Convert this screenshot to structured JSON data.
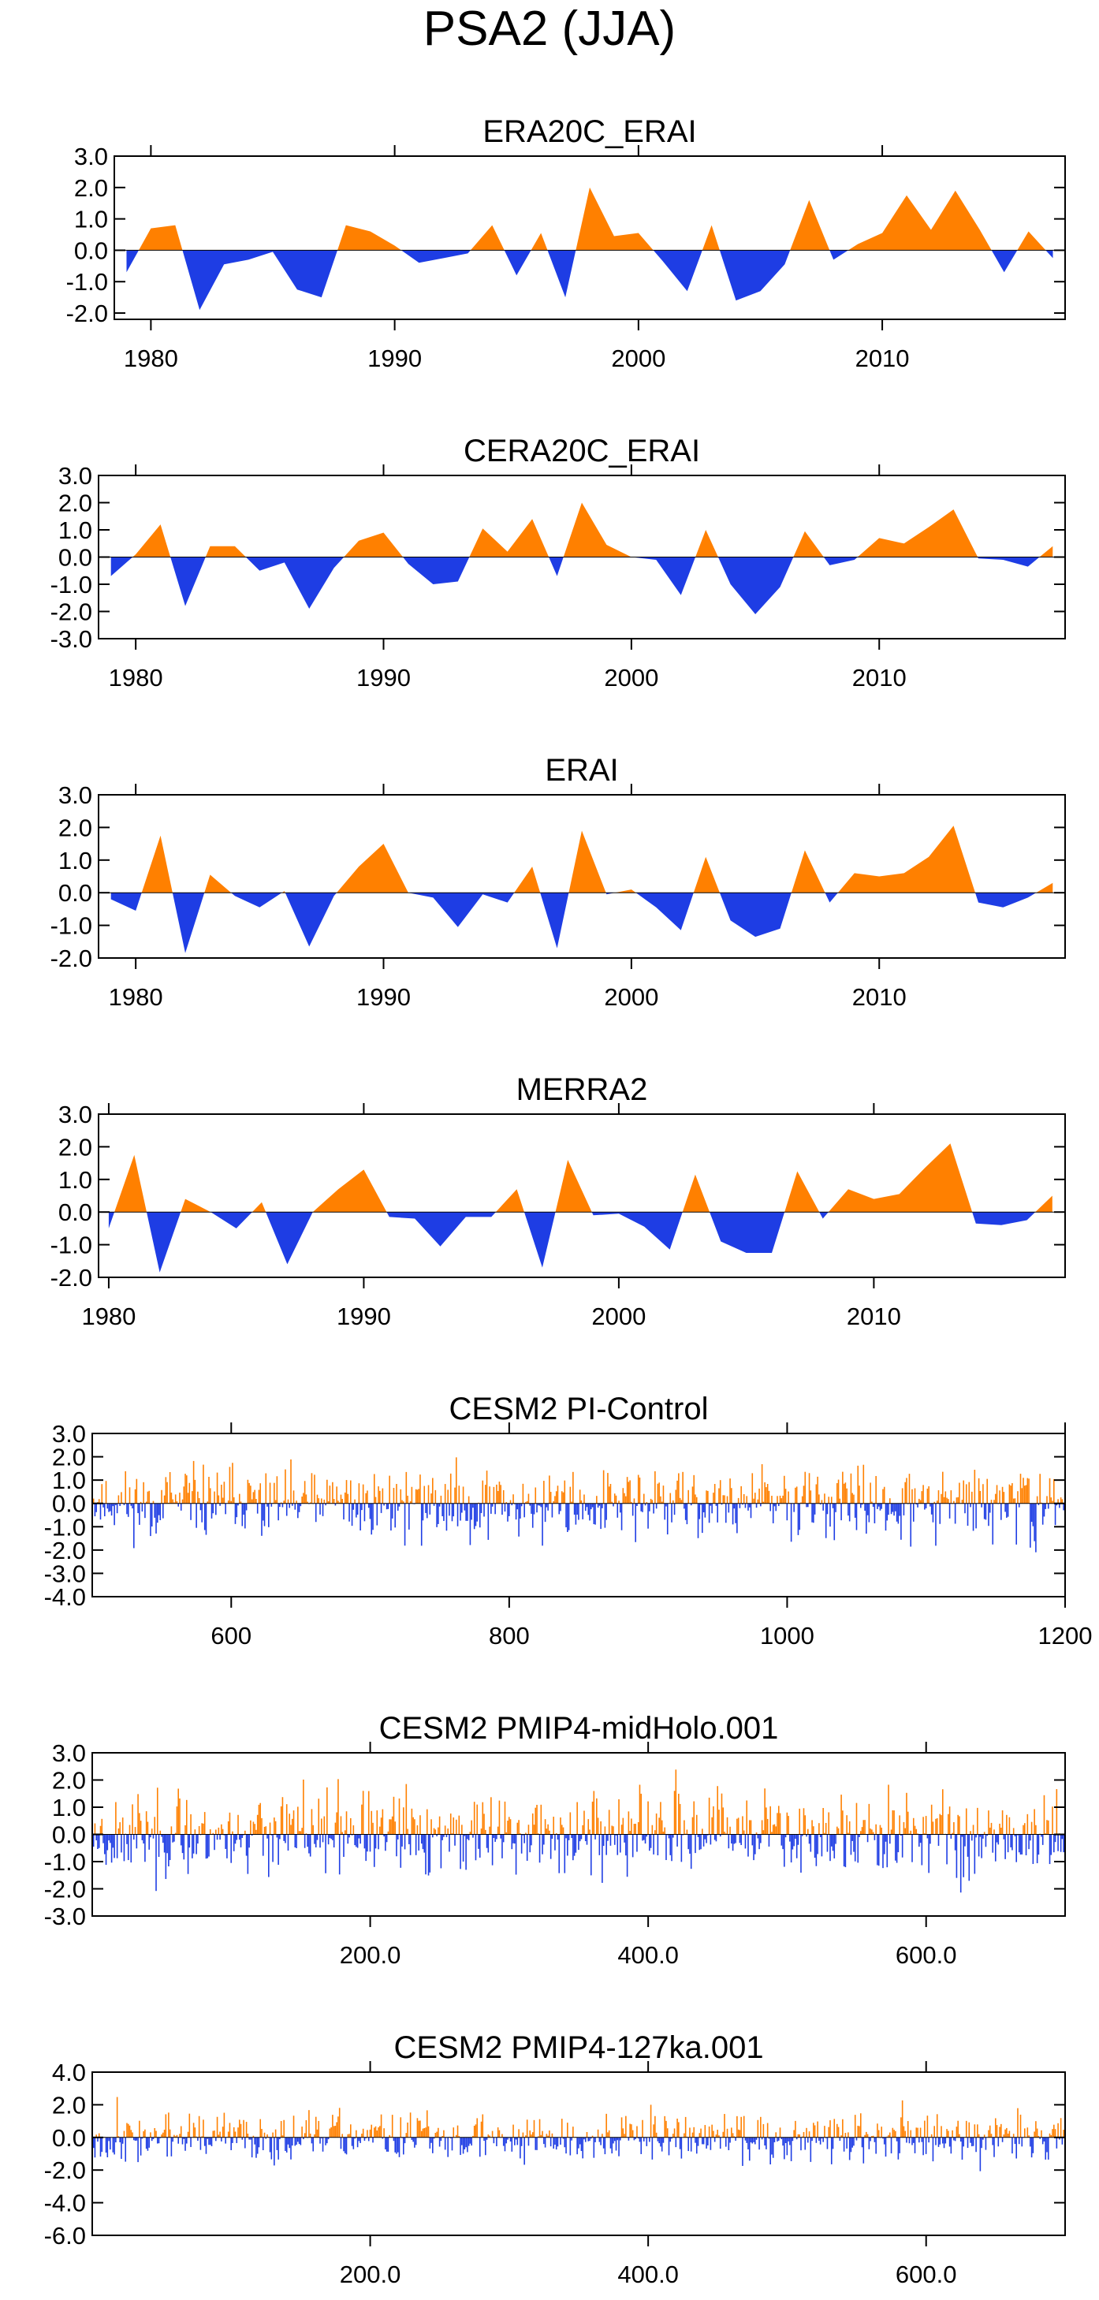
{
  "page": {
    "title": "PSA2 (JJA)"
  },
  "colors": {
    "positive": "#ff8000",
    "negative": "#1e3de4",
    "axis": "#000000"
  },
  "chart_data": [
    {
      "type": "area",
      "title": "ERA20C_ERAI",
      "xlim": [
        1978.5,
        2017.5
      ],
      "ylim": [
        -2.2,
        3.0
      ],
      "yticks": [
        3.0,
        2.0,
        1.0,
        0.0,
        -1.0,
        -2.0
      ],
      "xticks": [
        1980,
        1990,
        2000,
        2010
      ],
      "ytick_labels": [
        "3.0",
        "2.0",
        "1.0",
        "0.0",
        "-1.0",
        "-2.0"
      ],
      "xtick_labels": [
        "1980",
        "1990",
        "2000",
        "2010"
      ],
      "x_start": 1979,
      "values": [
        -0.7,
        0.7,
        0.8,
        -1.9,
        -0.45,
        -0.3,
        -0.05,
        -1.25,
        -1.5,
        0.8,
        0.6,
        0.15,
        -0.4,
        -0.25,
        -0.1,
        0.8,
        -0.8,
        0.55,
        -1.5,
        2.0,
        0.45,
        0.55,
        -0.35,
        -1.3,
        0.8,
        -1.6,
        -1.3,
        -0.45,
        1.6,
        -0.3,
        0.2,
        0.55,
        1.75,
        0.65,
        1.9,
        0.65,
        -0.7,
        0.6,
        -0.25
      ]
    },
    {
      "type": "area",
      "title": "CERA20C_ERAI",
      "xlim": [
        1978.5,
        2017.5
      ],
      "ylim": [
        -3.0,
        3.0
      ],
      "yticks": [
        3.0,
        2.0,
        1.0,
        0.0,
        -1.0,
        -2.0,
        -3.0
      ],
      "xticks": [
        1980,
        1990,
        2000,
        2010
      ],
      "ytick_labels": [
        "3.0",
        "2.0",
        "1.0",
        "0.0",
        "-1.0",
        "-2.0",
        "-3.0"
      ],
      "xtick_labels": [
        "1980",
        "1990",
        "2000",
        "2010"
      ],
      "x_start": 1979,
      "values": [
        -0.7,
        0.1,
        1.2,
        -1.8,
        0.4,
        0.4,
        -0.5,
        -0.2,
        -1.9,
        -0.4,
        0.6,
        0.9,
        -0.25,
        -1.0,
        -0.9,
        1.05,
        0.2,
        1.4,
        -0.7,
        2.0,
        0.45,
        0.0,
        -0.1,
        -1.4,
        1.0,
        -1.0,
        -2.1,
        -1.1,
        0.95,
        -0.3,
        -0.1,
        0.7,
        0.5,
        1.1,
        1.75,
        -0.05,
        -0.1,
        -0.35,
        0.4
      ]
    },
    {
      "type": "area",
      "title": "ERAI",
      "xlim": [
        1978.5,
        2017.5
      ],
      "ylim": [
        -2.0,
        3.0
      ],
      "yticks": [
        3.0,
        2.0,
        1.0,
        0.0,
        -1.0,
        -2.0
      ],
      "xticks": [
        1980,
        1990,
        2000,
        2010
      ],
      "ytick_labels": [
        "3.0",
        "2.0",
        "1.0",
        "0.0",
        "-1.0",
        "-2.0"
      ],
      "xtick_labels": [
        "1980",
        "1990",
        "2000",
        "2010"
      ],
      "x_start": 1979,
      "values": [
        -0.2,
        -0.55,
        1.75,
        -1.85,
        0.55,
        -0.1,
        -0.45,
        0.05,
        -1.65,
        -0.1,
        0.8,
        1.5,
        0.0,
        -0.15,
        -1.05,
        -0.05,
        -0.3,
        0.8,
        -1.7,
        1.9,
        -0.05,
        0.1,
        -0.45,
        -1.15,
        1.1,
        -0.85,
        -1.35,
        -1.1,
        1.3,
        -0.3,
        0.6,
        0.5,
        0.6,
        1.1,
        2.05,
        -0.3,
        -0.45,
        -0.15,
        0.3
      ]
    },
    {
      "type": "area",
      "title": "MERRA2",
      "xlim": [
        1979.6,
        2017.5
      ],
      "ylim": [
        -2.0,
        3.0
      ],
      "yticks": [
        3.0,
        2.0,
        1.0,
        0.0,
        -1.0,
        -2.0
      ],
      "xticks": [
        1980,
        1990,
        2000,
        2010
      ],
      "ytick_labels": [
        "3.0",
        "2.0",
        "1.0",
        "0.0",
        "-1.0",
        "-2.0"
      ],
      "xtick_labels": [
        "1980",
        "1990",
        "2000",
        "2010"
      ],
      "x_start": 1980,
      "values": [
        -0.5,
        1.75,
        -1.85,
        0.4,
        0.0,
        -0.5,
        0.3,
        -1.6,
        0.0,
        0.7,
        1.3,
        -0.15,
        -0.2,
        -1.05,
        -0.15,
        -0.15,
        0.7,
        -1.7,
        1.6,
        -0.1,
        -0.05,
        -0.45,
        -1.15,
        1.15,
        -0.9,
        -1.25,
        -1.25,
        1.25,
        -0.2,
        0.7,
        0.4,
        0.55,
        1.35,
        2.1,
        -0.35,
        -0.4,
        -0.25,
        0.5
      ]
    },
    {
      "type": "bar",
      "title": "CESM2 PI-Control",
      "xlim": [
        500,
        1200
      ],
      "ylim": [
        -4.0,
        3.0
      ],
      "yticks": [
        3.0,
        2.0,
        1.0,
        0.0,
        -1.0,
        -2.0,
        -3.0,
        -4.0
      ],
      "xticks": [
        600,
        800,
        1000,
        1200
      ],
      "ytick_labels": [
        "3.0",
        "2.0",
        "1.0",
        "0.0",
        "-1.0",
        "-2.0",
        "-3.0",
        "-4.0"
      ],
      "xtick_labels": [
        "600",
        "800",
        "1000",
        "1200"
      ],
      "x_start": 500,
      "n_years": 700,
      "seed": 11,
      "values_note": "annual bar series; values generated reproducibly from seed within the range",
      "range": [
        -3.8,
        2.6
      ]
    },
    {
      "type": "bar",
      "title": "CESM2 PMIP4-midHolo.001",
      "xlim": [
        0,
        700
      ],
      "ylim": [
        -3.0,
        3.0
      ],
      "yticks": [
        3.0,
        2.0,
        1.0,
        0.0,
        -1.0,
        -2.0,
        -3.0
      ],
      "xticks": [
        200,
        400,
        600
      ],
      "ytick_labels": [
        "3.0",
        "2.0",
        "1.0",
        "0.0",
        "-1.0",
        "-2.0",
        "-3.0"
      ],
      "xtick_labels": [
        "200.0",
        "400.0",
        "600.0"
      ],
      "x_start": 1,
      "n_years": 700,
      "seed": 23,
      "values_note": "annual bar series; values generated reproducibly from seed within the range",
      "range": [
        -2.6,
        2.6
      ]
    },
    {
      "type": "bar",
      "title": "CESM2 PMIP4-127ka.001",
      "xlim": [
        0,
        700
      ],
      "ylim": [
        -6.0,
        4.0
      ],
      "yticks": [
        4.0,
        2.0,
        0.0,
        -2.0,
        -4.0,
        -6.0
      ],
      "xticks": [
        200,
        400,
        600
      ],
      "ytick_labels": [
        "4.0",
        "2.0",
        "0.0",
        "-2.0",
        "-4.0",
        "-6.0"
      ],
      "xtick_labels": [
        "200.0",
        "400.0",
        "600.0"
      ],
      "x_start": 1,
      "n_years": 700,
      "seed": 37,
      "values_note": "annual bar series; values generated reproducibly from seed within the range",
      "range": [
        -3.9,
        3.4
      ]
    }
  ]
}
